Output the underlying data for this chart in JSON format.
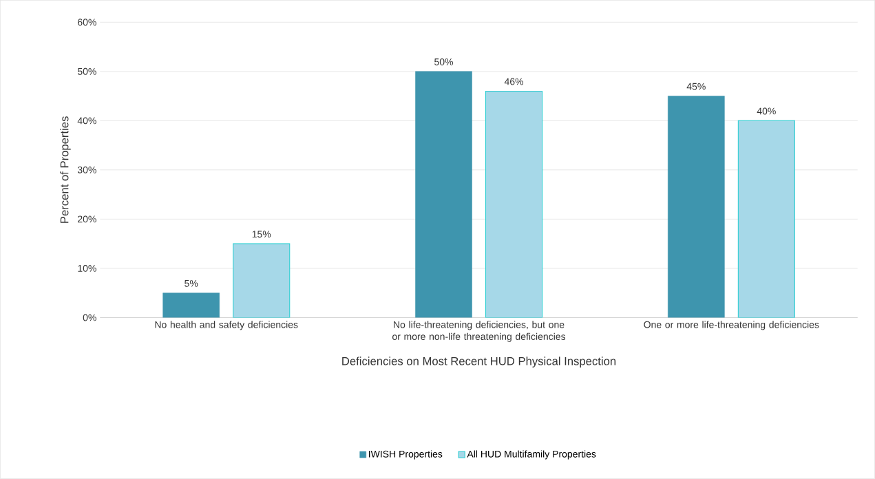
{
  "chart_data": {
    "type": "bar",
    "xlabel": "Deficiencies on Most Recent HUD Physical Inspection",
    "ylabel": "Percent of Properties",
    "categories": [
      "No health and safety deficiencies",
      "No life-threatening deficiencies, but one or more non-life threatening deficiencies",
      "One or more life-threatening deficiencies"
    ],
    "series": [
      {
        "name": "IWISH Properties",
        "color": "#3e95ae",
        "values": [
          5,
          50,
          45
        ],
        "value_labels": [
          "5%",
          "50%",
          "45%"
        ]
      },
      {
        "name": "All HUD Multifamily Properties",
        "color": "#a6d8e8",
        "values": [
          15,
          46,
          40
        ],
        "value_labels": [
          "15%",
          "46%",
          "40%"
        ]
      }
    ],
    "ylim": [
      0,
      60
    ],
    "yticks": [
      {
        "value": 0,
        "label": "0%"
      },
      {
        "value": 10,
        "label": "10%"
      },
      {
        "value": 20,
        "label": "20%"
      },
      {
        "value": 30,
        "label": "30%"
      },
      {
        "value": 40,
        "label": "40%"
      },
      {
        "value": 50,
        "label": "50%"
      },
      {
        "value": 60,
        "label": "60%"
      }
    ],
    "grid": "y",
    "legend": "bottom"
  }
}
